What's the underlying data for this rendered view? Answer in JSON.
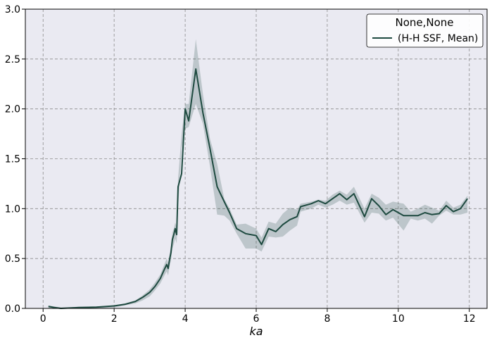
{
  "chart_data": {
    "type": "line",
    "xlabel": "ka",
    "ylabel": "",
    "xlim": [
      -0.5,
      12.5
    ],
    "ylim": [
      0,
      3.0
    ],
    "x_ticks": [
      0,
      2,
      4,
      6,
      8,
      10,
      12
    ],
    "y_ticks": [
      0.0,
      0.5,
      1.0,
      1.5,
      2.0,
      2.5,
      3.0
    ],
    "x_tick_labels": [
      "0",
      "2",
      "4",
      "6",
      "8",
      "10",
      "12"
    ],
    "y_tick_labels": [
      "0.0",
      "0.5",
      "1.0",
      "1.5",
      "2.0",
      "2.5",
      "3.0"
    ],
    "grid": true,
    "legend": {
      "title": "None,None",
      "placement": "top-right",
      "entries": [
        "(H-H SSF, Mean)"
      ]
    },
    "colors": {
      "line": "#1e4a40",
      "band": "#1e4a40",
      "plot_background": "#eaeaf2",
      "grid": "#8c8c8c"
    },
    "series": [
      {
        "name": "(H-H SSF, Mean)",
        "x": [
          0.15,
          0.3,
          0.5,
          0.8,
          1.0,
          1.5,
          2.0,
          2.3,
          2.6,
          2.8,
          3.0,
          3.15,
          3.3,
          3.4,
          3.48,
          3.52,
          3.56,
          3.6,
          3.64,
          3.68,
          3.72,
          3.76,
          3.8,
          3.9,
          4.0,
          4.1,
          4.3,
          4.5,
          4.7,
          4.9,
          5.1,
          5.25,
          5.45,
          5.7,
          6.0,
          6.15,
          6.35,
          6.55,
          6.75,
          6.95,
          7.15,
          7.25,
          7.55,
          7.75,
          7.95,
          8.15,
          8.35,
          8.55,
          8.75,
          9.05,
          9.25,
          9.45,
          9.65,
          9.85,
          10.15,
          10.35,
          10.55,
          10.75,
          10.95,
          11.15,
          11.35,
          11.55,
          11.75,
          11.95
        ],
        "y": [
          0.02,
          0.01,
          0.0,
          0.005,
          0.008,
          0.012,
          0.025,
          0.04,
          0.07,
          0.11,
          0.16,
          0.22,
          0.3,
          0.38,
          0.44,
          0.4,
          0.49,
          0.56,
          0.69,
          0.74,
          0.8,
          0.74,
          1.22,
          1.35,
          2.0,
          1.88,
          2.4,
          1.96,
          1.6,
          1.22,
          1.07,
          0.96,
          0.8,
          0.75,
          0.73,
          0.64,
          0.8,
          0.77,
          0.84,
          0.89,
          0.92,
          1.02,
          1.05,
          1.08,
          1.05,
          1.1,
          1.15,
          1.09,
          1.15,
          0.92,
          1.1,
          1.03,
          0.94,
          0.99,
          0.93,
          0.93,
          0.93,
          0.96,
          0.94,
          0.95,
          1.03,
          0.97,
          1.0,
          1.1
        ],
        "lower": [
          0.0,
          0.0,
          0.0,
          0.0,
          0.0,
          0.0,
          0.01,
          0.03,
          0.05,
          0.08,
          0.12,
          0.18,
          0.25,
          0.32,
          0.37,
          0.33,
          0.42,
          0.48,
          0.6,
          0.64,
          0.7,
          0.65,
          1.0,
          1.6,
          1.8,
          1.82,
          2.05,
          1.85,
          1.42,
          0.94,
          0.93,
          0.88,
          0.75,
          0.6,
          0.6,
          0.57,
          0.72,
          0.71,
          0.72,
          0.78,
          0.83,
          0.97,
          1.0,
          1.04,
          1.01,
          1.04,
          1.08,
          1.04,
          1.06,
          0.86,
          0.96,
          0.95,
          0.88,
          0.91,
          0.78,
          0.9,
          0.88,
          0.9,
          0.85,
          0.93,
          0.98,
          0.94,
          0.94,
          0.96
        ],
        "upper": [
          0.03,
          0.02,
          0.01,
          0.01,
          0.02,
          0.02,
          0.03,
          0.05,
          0.08,
          0.13,
          0.19,
          0.26,
          0.34,
          0.43,
          0.5,
          0.46,
          0.54,
          0.63,
          0.76,
          0.8,
          0.86,
          0.82,
          1.3,
          1.75,
          2.05,
          2.05,
          2.7,
          2.15,
          1.7,
          1.45,
          1.1,
          1.0,
          0.84,
          0.85,
          0.8,
          0.71,
          0.87,
          0.85,
          0.95,
          1.01,
          0.99,
          1.05,
          1.07,
          1.09,
          1.08,
          1.14,
          1.18,
          1.14,
          1.22,
          1.0,
          1.15,
          1.11,
          1.04,
          1.07,
          1.05,
          0.97,
          1.0,
          1.04,
          1.01,
          0.98,
          1.08,
          1.01,
          1.04,
          1.13
        ]
      }
    ]
  }
}
